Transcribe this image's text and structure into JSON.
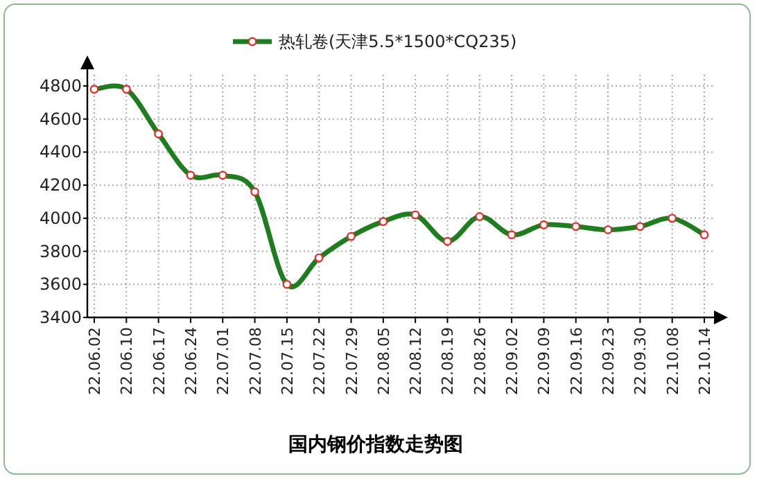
{
  "chart_data": {
    "type": "line",
    "title": "国内钢价指数走势图",
    "categories": [
      "22.06.02",
      "22.06.10",
      "22.06.17",
      "22.06.24",
      "22.07.01",
      "22.07.08",
      "22.07.15",
      "22.07.22",
      "22.07.29",
      "22.08.05",
      "22.08.12",
      "22.08.19",
      "22.08.26",
      "22.09.02",
      "22.09.09",
      "22.09.16",
      "22.09.23",
      "22.09.30",
      "22.10.08",
      "22.10.14"
    ],
    "series": [
      {
        "name": "热轧卷(天津5.5*1500*CQ235)",
        "color": "#1e7d1e",
        "values": [
          4780,
          4780,
          4510,
          4260,
          4260,
          4160,
          3600,
          3760,
          3890,
          3980,
          4020,
          3860,
          4010,
          3900,
          3960,
          3950,
          3930,
          3950,
          4000,
          3900
        ]
      }
    ],
    "ylim": [
      3400,
      4800
    ],
    "yticks": [
      3400,
      3600,
      3800,
      4000,
      4200,
      4400,
      4600,
      4800
    ],
    "grid": true,
    "legend": "top",
    "marker": "circle",
    "line_style": "solid"
  }
}
